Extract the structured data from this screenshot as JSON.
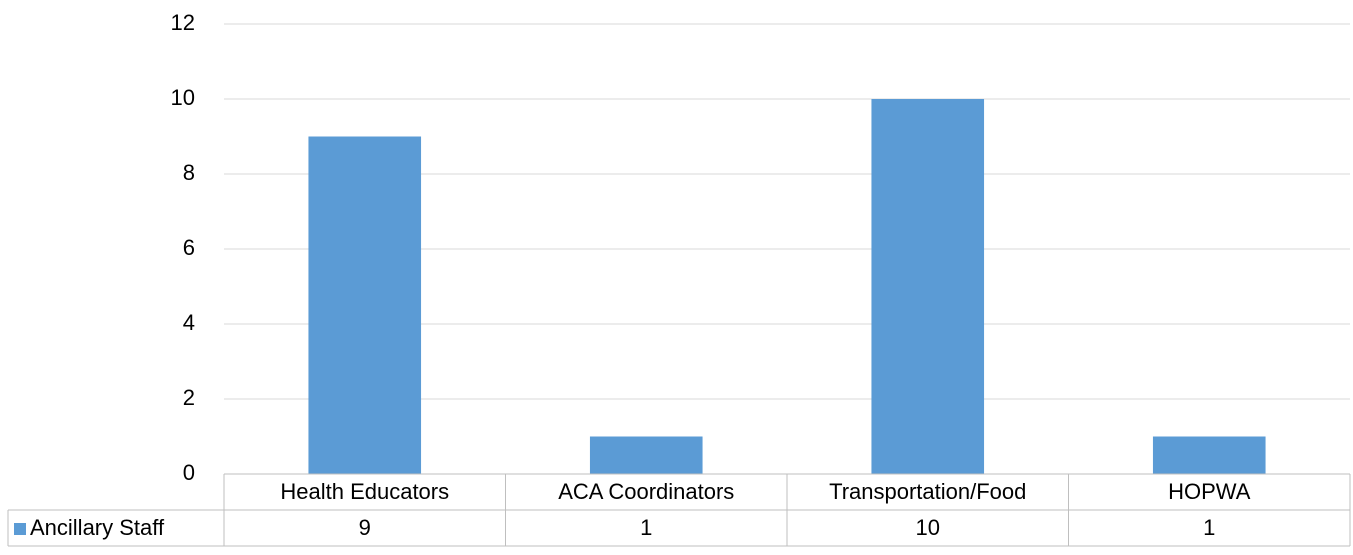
{
  "chart_data": {
    "type": "bar",
    "categories": [
      "Health Educators",
      "ACA Coordinators",
      "Transportation/Food",
      "HOPWA"
    ],
    "series": [
      {
        "name": "Ancillary Staff",
        "color": "#5b9bd5",
        "values": [
          9,
          1,
          10,
          1
        ]
      }
    ],
    "ylim": [
      0,
      12
    ],
    "yticks": [
      0,
      2,
      4,
      6,
      8,
      10,
      12
    ],
    "grid": true,
    "data_table": true
  }
}
